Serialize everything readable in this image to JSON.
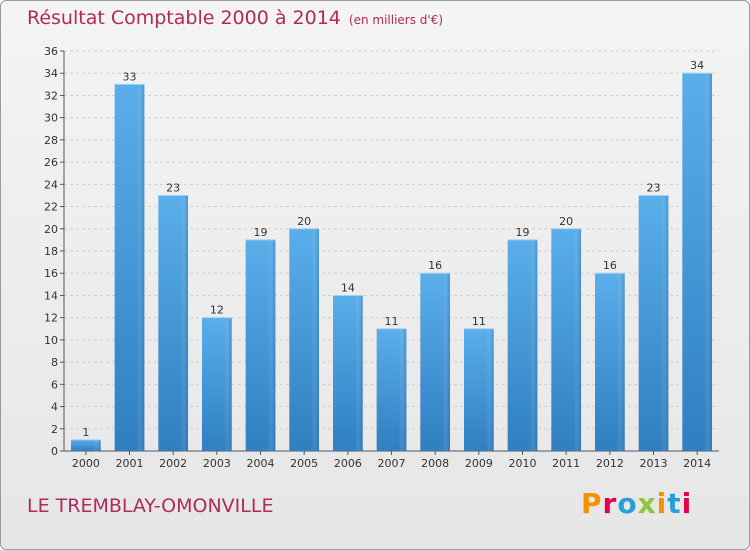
{
  "header": {
    "title": "Résultat Comptable 2000 à 2014",
    "subtitle": "(en milliers d'€)"
  },
  "footer": {
    "commune": "LE TREMBLAY-OMONVILLE",
    "logo_text": "Proxiti",
    "logo_colors": [
      "#f39200",
      "#e2004f",
      "#2a9fd6",
      "#8cc63f",
      "#f39200",
      "#2a9fd6",
      "#e2004f"
    ]
  },
  "chart_data": {
    "type": "bar",
    "title": "Résultat Comptable 2000 à 2014",
    "subtitle": "(en milliers d'€)",
    "xlabel": "",
    "ylabel": "",
    "categories": [
      "2000",
      "2001",
      "2002",
      "2003",
      "2004",
      "2005",
      "2006",
      "2007",
      "2008",
      "2009",
      "2010",
      "2011",
      "2012",
      "2013",
      "2014"
    ],
    "values": [
      1,
      33,
      23,
      12,
      19,
      20,
      14,
      11,
      16,
      11,
      19,
      20,
      16,
      23,
      34
    ],
    "ylim": [
      0,
      36
    ],
    "yticks": [
      0,
      2,
      4,
      6,
      8,
      10,
      12,
      14,
      16,
      18,
      20,
      22,
      24,
      26,
      28,
      30,
      32,
      34,
      36
    ],
    "grid": true,
    "bar_color": "#4a9fe0"
  }
}
